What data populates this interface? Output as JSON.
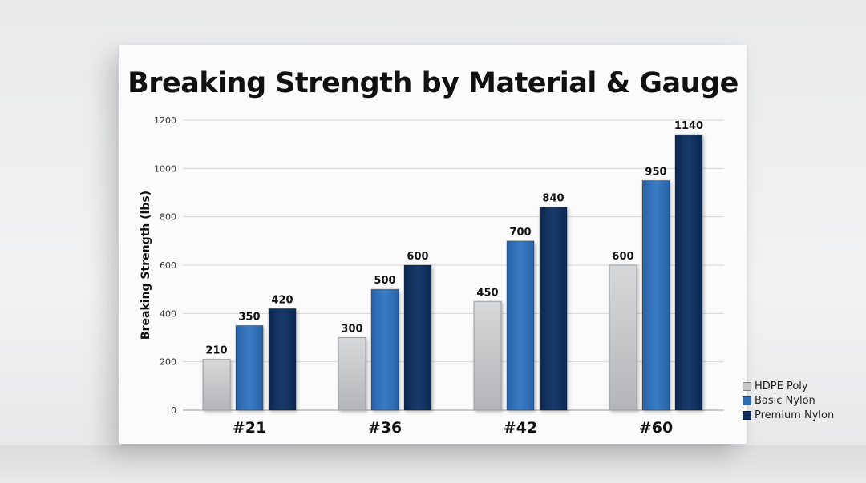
{
  "chart_data": {
    "type": "bar",
    "title": "Breaking Strength by Material & Gauge",
    "xlabel": "",
    "ylabel": "Breaking Strength (lbs)",
    "categories": [
      "#21",
      "#36",
      "#42",
      "#60"
    ],
    "ylim": [
      0,
      1200
    ],
    "yticks": [
      0,
      200,
      400,
      600,
      800,
      1000,
      1200
    ],
    "grid": true,
    "legend_position": "bottom-right",
    "series": [
      {
        "name": "HDPE Poly",
        "values": [
          210,
          300,
          450,
          600
        ],
        "color": "#c4c6c8"
      },
      {
        "name": "Basic Nylon",
        "values": [
          350,
          500,
          700,
          950
        ],
        "color": "#2f6db3"
      },
      {
        "name": "Premium Nylon",
        "values": [
          420,
          600,
          840,
          1140
        ],
        "color": "#102f5c"
      }
    ]
  }
}
